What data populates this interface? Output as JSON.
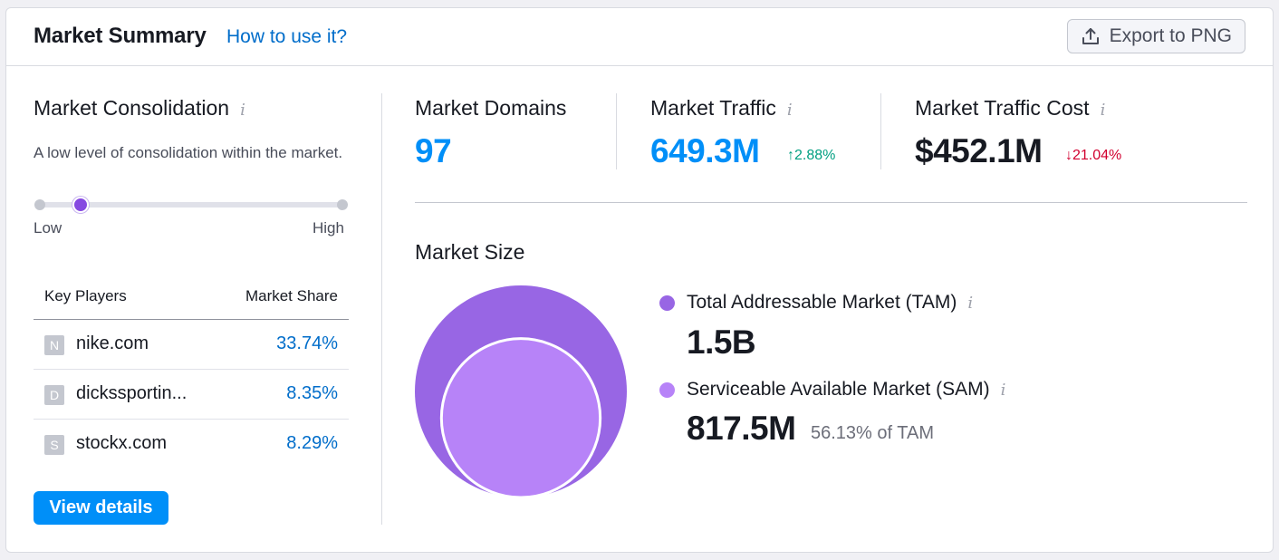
{
  "header": {
    "title": "Market Summary",
    "how_to_link": "How to use it?",
    "export_label": "Export to PNG",
    "export_icon": "upload-icon"
  },
  "consolidation": {
    "title": "Market Consolidation",
    "info_icon": "i",
    "description": "A low level of consolidation within the market.",
    "low_label": "Low",
    "high_label": "High",
    "slider_level": 0.14,
    "slider_color": "#8649e1"
  },
  "key_players": {
    "col_player": "Key Players",
    "col_share": "Market Share",
    "rows": [
      {
        "favicon": "N",
        "domain": "nike.com",
        "share": "33.74%"
      },
      {
        "favicon": "D",
        "domain": "dickssportin...",
        "share": "8.35%"
      },
      {
        "favicon": "S",
        "domain": "stockx.com",
        "share": "8.29%"
      }
    ],
    "view_details": "View details"
  },
  "metrics": {
    "domains": {
      "label": "Market Domains",
      "value": "97"
    },
    "traffic": {
      "label": "Market Traffic",
      "value": "649.3M",
      "delta": "↑2.88%",
      "delta_color": "#009f81"
    },
    "cost": {
      "label": "Market Traffic Cost",
      "value": "$452.1M",
      "delta": "↓21.04%",
      "delta_color": "#d1002f"
    }
  },
  "market_size": {
    "title": "Market Size",
    "tam": {
      "label": "Total Addressable Market (TAM)",
      "value": "1.5B",
      "color": "#9866e4"
    },
    "sam": {
      "label": "Serviceable Available Market (SAM)",
      "value": "817.5M",
      "sub": "56.13% of TAM",
      "color": "#b783f8",
      "fraction_of_tam": 0.5613
    }
  },
  "colors": {
    "accent_blue": "#008ff8",
    "link_blue": "#006dca",
    "tam_purple": "#9866e4",
    "sam_purple": "#b783f8"
  }
}
